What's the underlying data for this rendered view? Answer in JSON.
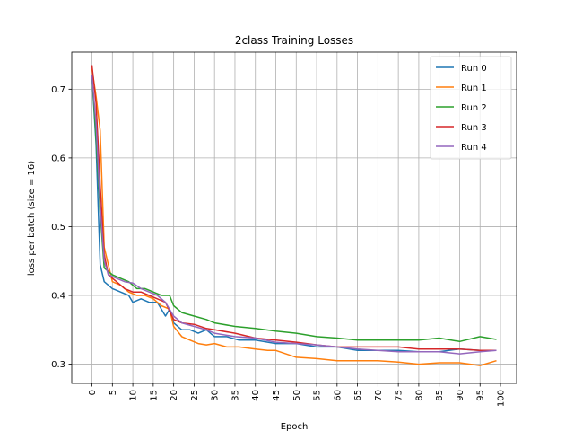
{
  "chart_data": {
    "type": "line",
    "title": "2class Training Losses",
    "xlabel": "Epoch",
    "ylabel": "loss per batch (size = 16)",
    "xlim": [
      -4.95,
      103.95
    ],
    "ylim": [
      0.272,
      0.754
    ],
    "xticks": [
      "0",
      "5",
      "10",
      "15",
      "20",
      "25",
      "30",
      "35",
      "40",
      "45",
      "50",
      "55",
      "60",
      "65",
      "70",
      "75",
      "80",
      "85",
      "90",
      "95",
      "100"
    ],
    "yticks": [
      "0.3",
      "0.4",
      "0.5",
      "0.6",
      "0.7"
    ],
    "grid": true,
    "legend_position": "top-right",
    "series": [
      {
        "name": "Run 0",
        "color": "#1f77b4",
        "x": [
          0,
          1,
          2,
          3,
          5,
          7,
          9,
          10,
          12,
          14,
          16,
          18,
          19,
          20,
          22,
          24,
          26,
          28,
          30,
          33,
          36,
          40,
          45,
          50,
          55,
          60,
          65,
          70,
          75,
          80,
          85,
          90,
          95,
          99
        ],
        "y": [
          0.72,
          0.62,
          0.445,
          0.42,
          0.41,
          0.405,
          0.4,
          0.39,
          0.395,
          0.39,
          0.39,
          0.37,
          0.38,
          0.36,
          0.35,
          0.35,
          0.345,
          0.35,
          0.34,
          0.34,
          0.335,
          0.335,
          0.33,
          0.33,
          0.325,
          0.325,
          0.32,
          0.32,
          0.32,
          0.318,
          0.318,
          0.322,
          0.32,
          0.32
        ]
      },
      {
        "name": "Run 1",
        "color": "#ff7f0e",
        "x": [
          0,
          1,
          2,
          3,
          5,
          7,
          9,
          11,
          13,
          15,
          17,
          19,
          20,
          22,
          24,
          26,
          28,
          30,
          33,
          36,
          40,
          43,
          45,
          50,
          55,
          60,
          65,
          70,
          75,
          80,
          85,
          90,
          95,
          99
        ],
        "y": [
          0.73,
          0.69,
          0.64,
          0.47,
          0.42,
          0.415,
          0.405,
          0.4,
          0.4,
          0.395,
          0.385,
          0.38,
          0.355,
          0.34,
          0.335,
          0.33,
          0.328,
          0.33,
          0.325,
          0.325,
          0.322,
          0.32,
          0.32,
          0.31,
          0.308,
          0.305,
          0.305,
          0.305,
          0.303,
          0.3,
          0.302,
          0.302,
          0.298,
          0.305
        ]
      },
      {
        "name": "Run 2",
        "color": "#2ca02c",
        "x": [
          0,
          1,
          2,
          3,
          5,
          7,
          9,
          11,
          13,
          15,
          17,
          19,
          20,
          22,
          25,
          28,
          30,
          35,
          40,
          45,
          50,
          55,
          60,
          65,
          70,
          75,
          80,
          85,
          90,
          95,
          99
        ],
        "y": [
          0.72,
          0.63,
          0.52,
          0.44,
          0.43,
          0.425,
          0.42,
          0.41,
          0.41,
          0.405,
          0.4,
          0.4,
          0.385,
          0.375,
          0.37,
          0.365,
          0.36,
          0.355,
          0.352,
          0.348,
          0.345,
          0.34,
          0.338,
          0.335,
          0.335,
          0.335,
          0.335,
          0.338,
          0.333,
          0.34,
          0.336
        ]
      },
      {
        "name": "Run 3",
        "color": "#d62728",
        "x": [
          0,
          1,
          2,
          3,
          4,
          6,
          8,
          10,
          12,
          14,
          16,
          18,
          20,
          22,
          25,
          28,
          30,
          35,
          40,
          45,
          50,
          55,
          60,
          65,
          70,
          75,
          80,
          85,
          90,
          95,
          99
        ],
        "y": [
          0.735,
          0.68,
          0.56,
          0.46,
          0.43,
          0.42,
          0.41,
          0.405,
          0.405,
          0.4,
          0.395,
          0.39,
          0.365,
          0.36,
          0.358,
          0.352,
          0.35,
          0.345,
          0.338,
          0.335,
          0.332,
          0.328,
          0.325,
          0.325,
          0.325,
          0.325,
          0.322,
          0.322,
          0.322,
          0.32,
          0.32
        ]
      },
      {
        "name": "Run 4",
        "color": "#9467bd",
        "x": [
          0,
          1,
          2,
          3,
          4,
          6,
          8,
          10,
          12,
          14,
          16,
          18,
          20,
          22,
          25,
          28,
          30,
          35,
          40,
          45,
          50,
          55,
          60,
          65,
          70,
          75,
          80,
          85,
          90,
          95,
          99
        ],
        "y": [
          0.72,
          0.65,
          0.53,
          0.45,
          0.43,
          0.425,
          0.42,
          0.418,
          0.41,
          0.405,
          0.4,
          0.39,
          0.37,
          0.36,
          0.355,
          0.35,
          0.345,
          0.34,
          0.338,
          0.332,
          0.33,
          0.328,
          0.325,
          0.322,
          0.32,
          0.318,
          0.318,
          0.318,
          0.315,
          0.318,
          0.32
        ]
      }
    ]
  }
}
